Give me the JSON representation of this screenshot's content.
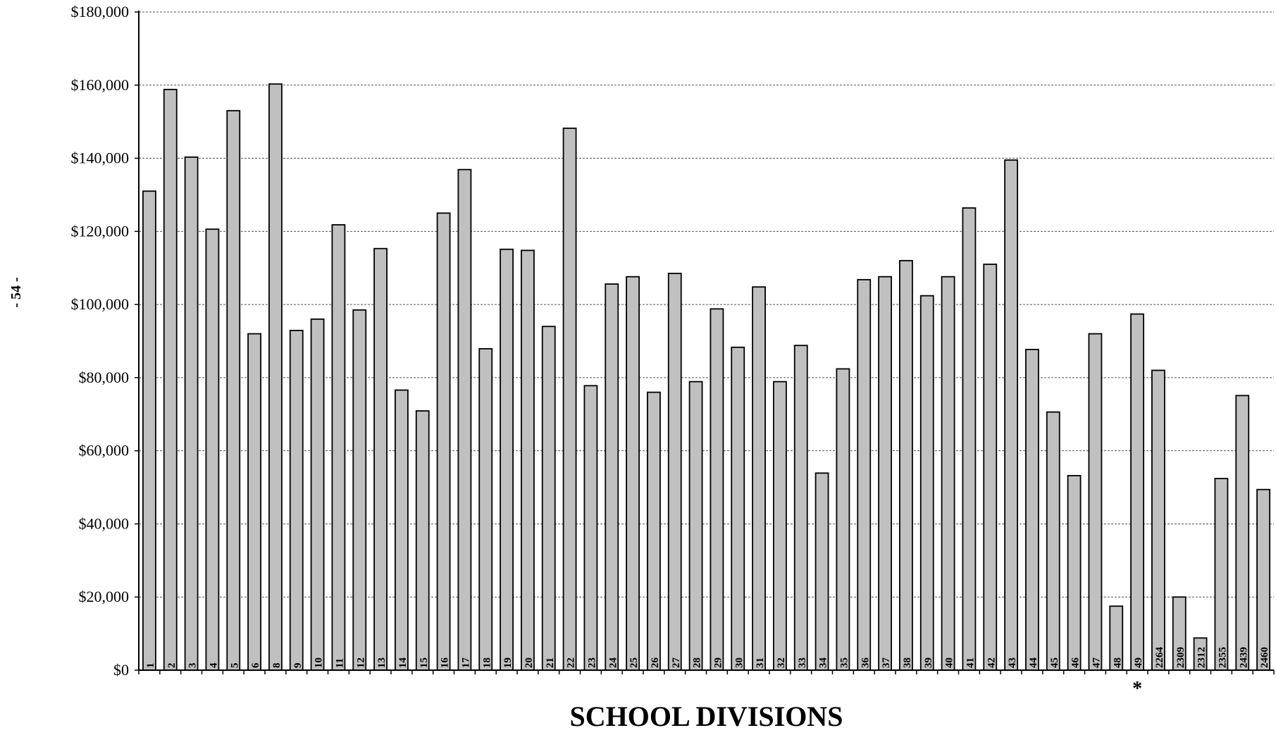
{
  "page_label": "- 54 -",
  "chart_data": {
    "type": "bar",
    "title": "",
    "xlabel": "SCHOOL DIVISIONS",
    "ylabel": "",
    "ylim": [
      0,
      180000
    ],
    "yticks": [
      0,
      20000,
      40000,
      60000,
      80000,
      100000,
      120000,
      140000,
      160000,
      180000
    ],
    "ytick_labels": [
      "$0",
      "$20,000",
      "$40,000",
      "$60,000",
      "$80,000",
      "$100,000",
      "$120,000",
      "$140,000",
      "$160,000",
      "$180,000"
    ],
    "grid": "horizontal dashed",
    "bar_color": "#c0c0c0",
    "categories": [
      "1",
      "2",
      "3",
      "4",
      "5",
      "6",
      "8",
      "9",
      "10",
      "11",
      "12",
      "13",
      "14",
      "15",
      "16",
      "17",
      "18",
      "19",
      "20",
      "21",
      "22",
      "23",
      "24",
      "25",
      "26",
      "27",
      "28",
      "29",
      "30",
      "31",
      "32",
      "33",
      "34",
      "35",
      "36",
      "37",
      "38",
      "39",
      "40",
      "41",
      "42",
      "43",
      "44",
      "45",
      "46",
      "47",
      "48",
      "49",
      "2264",
      "2309",
      "2312",
      "2355",
      "2439",
      "2460"
    ],
    "values": [
      131000,
      158800,
      140300,
      120600,
      153000,
      92000,
      160300,
      92900,
      96000,
      121800,
      98500,
      115300,
      76600,
      70900,
      125000,
      136900,
      87900,
      115100,
      114800,
      94000,
      148200,
      77800,
      105600,
      107600,
      76000,
      108500,
      78900,
      98800,
      88300,
      104800,
      78900,
      88800,
      53900,
      82400,
      106800,
      107600,
      112000,
      102400,
      107600,
      126400,
      111000,
      139500,
      87700,
      70600,
      53200,
      92000,
      17500,
      97400,
      82000,
      20000,
      8800,
      52400,
      75100,
      49400
    ],
    "annotations": [
      {
        "text": "*",
        "category": "49"
      }
    ]
  }
}
